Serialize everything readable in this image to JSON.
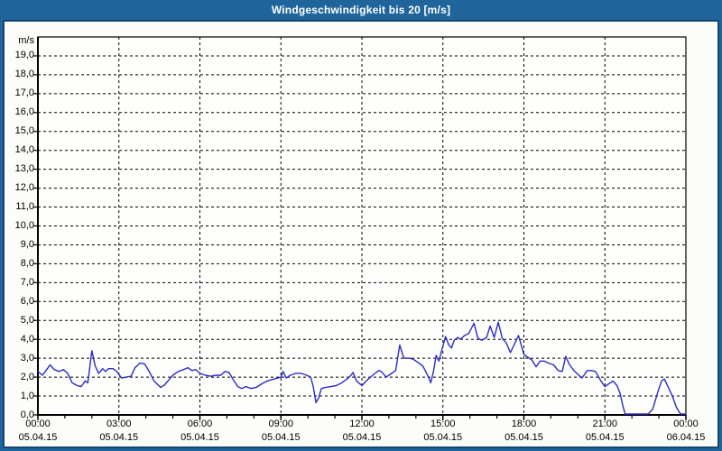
{
  "window": {
    "title": "Windgeschwindigkeit bis 20 [m/s]"
  },
  "colors": {
    "titlebar_bg": "#1f659c",
    "frame_inner_line": "#17456e",
    "content_bg": "#fcfdf8",
    "plot_bg": "#fefefc",
    "grid": "#000000",
    "axis": "#000000",
    "line": "#2b2bc8",
    "title_text": "#ffffff",
    "label_text": "#000000"
  },
  "chart_data": {
    "type": "line",
    "title": "Windgeschwindigkeit bis 20 [m/s]",
    "ylabel": "m/s",
    "xlabel": "",
    "grid": "dashed",
    "legend": "none",
    "y_axis": {
      "unit_label": "m/s",
      "min": 0,
      "max": 20,
      "tick_step": 1,
      "tick_labels": [
        "19,0",
        "18,0",
        "17,0",
        "16,0",
        "15,0",
        "14,0",
        "13,0",
        "12,0",
        "11,0",
        "10,0",
        "9,0",
        "8,0",
        "7,0",
        "6,0",
        "5,0",
        "4,0",
        "3,0",
        "2,0",
        "1,0",
        "0,0"
      ],
      "tick_values": [
        19,
        18,
        17,
        16,
        15,
        14,
        13,
        12,
        11,
        10,
        9,
        8,
        7,
        6,
        5,
        4,
        3,
        2,
        1,
        0
      ]
    },
    "x_axis": {
      "min_hour": 0,
      "max_hour": 24,
      "minor_tick_every_hours": 1,
      "major_ticks": [
        {
          "hour": 0,
          "time": "00:00",
          "date": "05.04.15"
        },
        {
          "hour": 3,
          "time": "03:00",
          "date": "05.04.15"
        },
        {
          "hour": 6,
          "time": "06:00",
          "date": "05.04.15"
        },
        {
          "hour": 9,
          "time": "09:00",
          "date": "05.04.15"
        },
        {
          "hour": 12,
          "time": "12:00",
          "date": "05.04.15"
        },
        {
          "hour": 15,
          "time": "15:00",
          "date": "05.04.15"
        },
        {
          "hour": 18,
          "time": "18:00",
          "date": "05.04.15"
        },
        {
          "hour": 21,
          "time": "21:00",
          "date": "05.04.15"
        },
        {
          "hour": 24,
          "time": "00:00",
          "date": "06.04.15"
        }
      ]
    },
    "series": [
      {
        "name": "Windgeschwindigkeit",
        "unit": "m/s",
        "color": "#2b2bc8",
        "points": [
          [
            0.0,
            2.3
          ],
          [
            0.17,
            2.1
          ],
          [
            0.35,
            2.45
          ],
          [
            0.45,
            2.65
          ],
          [
            0.6,
            2.4
          ],
          [
            0.8,
            2.3
          ],
          [
            0.95,
            2.4
          ],
          [
            1.1,
            2.2
          ],
          [
            1.27,
            1.7
          ],
          [
            1.45,
            1.55
          ],
          [
            1.6,
            1.5
          ],
          [
            1.75,
            1.8
          ],
          [
            1.85,
            1.7
          ],
          [
            2.0,
            3.4
          ],
          [
            2.12,
            2.6
          ],
          [
            2.25,
            2.2
          ],
          [
            2.4,
            2.45
          ],
          [
            2.5,
            2.3
          ],
          [
            2.62,
            2.45
          ],
          [
            2.78,
            2.45
          ],
          [
            2.92,
            2.3
          ],
          [
            3.1,
            1.95
          ],
          [
            3.28,
            2.0
          ],
          [
            3.45,
            2.05
          ],
          [
            3.6,
            2.5
          ],
          [
            3.78,
            2.75
          ],
          [
            3.95,
            2.7
          ],
          [
            4.12,
            2.3
          ],
          [
            4.3,
            1.8
          ],
          [
            4.55,
            1.45
          ],
          [
            4.7,
            1.6
          ],
          [
            4.85,
            1.85
          ],
          [
            5.0,
            2.1
          ],
          [
            5.2,
            2.3
          ],
          [
            5.4,
            2.4
          ],
          [
            5.55,
            2.5
          ],
          [
            5.7,
            2.35
          ],
          [
            5.85,
            2.4
          ],
          [
            6.0,
            2.2
          ],
          [
            6.2,
            2.1
          ],
          [
            6.4,
            2.05
          ],
          [
            6.6,
            2.1
          ],
          [
            6.78,
            2.1
          ],
          [
            6.93,
            2.3
          ],
          [
            7.08,
            2.25
          ],
          [
            7.22,
            1.9
          ],
          [
            7.4,
            1.5
          ],
          [
            7.55,
            1.4
          ],
          [
            7.7,
            1.5
          ],
          [
            7.9,
            1.4
          ],
          [
            8.08,
            1.45
          ],
          [
            8.3,
            1.65
          ],
          [
            8.5,
            1.8
          ],
          [
            8.75,
            1.9
          ],
          [
            9.0,
            2.0
          ],
          [
            9.08,
            2.3
          ],
          [
            9.2,
            1.95
          ],
          [
            9.35,
            2.1
          ],
          [
            9.55,
            2.2
          ],
          [
            9.75,
            2.2
          ],
          [
            9.95,
            2.1
          ],
          [
            10.1,
            2.0
          ],
          [
            10.2,
            1.5
          ],
          [
            10.3,
            0.65
          ],
          [
            10.4,
            0.9
          ],
          [
            10.5,
            1.4
          ],
          [
            10.65,
            1.45
          ],
          [
            10.85,
            1.5
          ],
          [
            11.05,
            1.55
          ],
          [
            11.25,
            1.7
          ],
          [
            11.45,
            1.9
          ],
          [
            11.6,
            2.1
          ],
          [
            11.67,
            2.25
          ],
          [
            11.8,
            1.8
          ],
          [
            12.0,
            1.55
          ],
          [
            12.2,
            1.85
          ],
          [
            12.4,
            2.1
          ],
          [
            12.62,
            2.35
          ],
          [
            12.72,
            2.3
          ],
          [
            12.9,
            2.0
          ],
          [
            13.05,
            2.15
          ],
          [
            13.25,
            2.35
          ],
          [
            13.4,
            3.7
          ],
          [
            13.55,
            3.0
          ],
          [
            13.75,
            3.0
          ],
          [
            13.9,
            2.95
          ],
          [
            14.05,
            2.8
          ],
          [
            14.25,
            2.6
          ],
          [
            14.4,
            2.2
          ],
          [
            14.55,
            1.7
          ],
          [
            14.65,
            2.3
          ],
          [
            14.75,
            3.15
          ],
          [
            14.85,
            2.85
          ],
          [
            15.0,
            3.65
          ],
          [
            15.1,
            4.15
          ],
          [
            15.22,
            3.7
          ],
          [
            15.32,
            3.55
          ],
          [
            15.42,
            3.95
          ],
          [
            15.55,
            4.1
          ],
          [
            15.65,
            4.0
          ],
          [
            15.8,
            4.2
          ],
          [
            15.95,
            4.3
          ],
          [
            16.15,
            4.85
          ],
          [
            16.3,
            4.05
          ],
          [
            16.45,
            3.95
          ],
          [
            16.62,
            4.1
          ],
          [
            16.75,
            4.7
          ],
          [
            16.9,
            4.1
          ],
          [
            17.05,
            4.9
          ],
          [
            17.2,
            4.05
          ],
          [
            17.35,
            3.8
          ],
          [
            17.5,
            3.3
          ],
          [
            17.62,
            3.65
          ],
          [
            17.8,
            4.2
          ],
          [
            18.0,
            3.2
          ],
          [
            18.15,
            3.05
          ],
          [
            18.3,
            2.9
          ],
          [
            18.45,
            2.55
          ],
          [
            18.6,
            2.85
          ],
          [
            18.75,
            2.85
          ],
          [
            18.9,
            2.75
          ],
          [
            19.1,
            2.65
          ],
          [
            19.27,
            2.35
          ],
          [
            19.42,
            2.3
          ],
          [
            19.55,
            3.1
          ],
          [
            19.67,
            2.7
          ],
          [
            19.85,
            2.35
          ],
          [
            20.0,
            2.15
          ],
          [
            20.15,
            1.95
          ],
          [
            20.35,
            2.35
          ],
          [
            20.5,
            2.35
          ],
          [
            20.65,
            2.3
          ],
          [
            20.85,
            1.8
          ],
          [
            21.0,
            1.5
          ],
          [
            21.15,
            1.65
          ],
          [
            21.3,
            1.8
          ],
          [
            21.45,
            1.55
          ],
          [
            21.57,
            1.1
          ],
          [
            21.67,
            0.45
          ],
          [
            21.75,
            0.05
          ],
          [
            22.0,
            0.05
          ],
          [
            22.3,
            0.05
          ],
          [
            22.6,
            0.05
          ],
          [
            22.77,
            0.3
          ],
          [
            23.0,
            1.4
          ],
          [
            23.1,
            1.8
          ],
          [
            23.2,
            1.9
          ],
          [
            23.35,
            1.45
          ],
          [
            23.5,
            1.0
          ],
          [
            23.65,
            0.4
          ],
          [
            23.8,
            0.05
          ],
          [
            24.0,
            0.05
          ]
        ]
      }
    ]
  }
}
